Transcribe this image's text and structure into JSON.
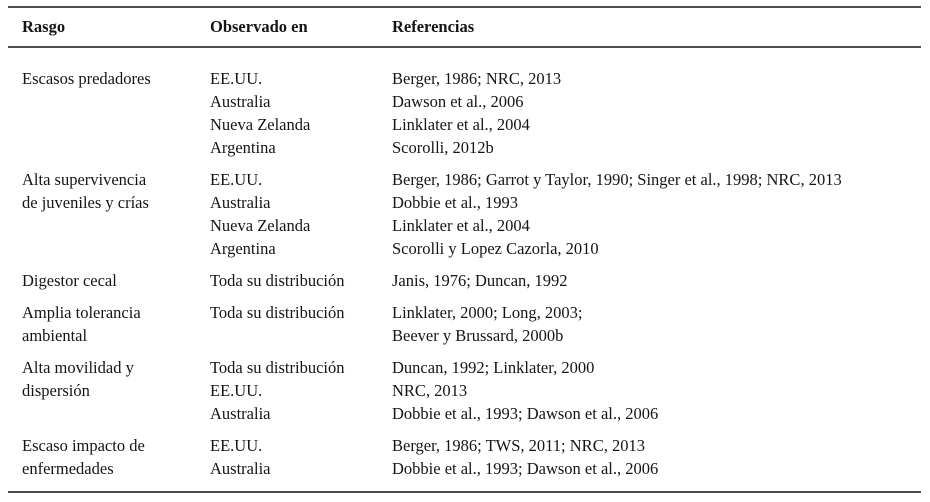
{
  "colors": {
    "rule": "#4e4e4e",
    "text": "#151515",
    "background": "#ffffff"
  },
  "table": {
    "columns": [
      "Rasgo",
      "Observado en",
      "Referencias"
    ],
    "rows": [
      {
        "rasgo_lines": [
          "Escasos predadores"
        ],
        "cells": [
          {
            "observado": "EE.UU.",
            "referencias": "Berger, 1986; NRC, 2013"
          },
          {
            "observado": "Australia",
            "referencias": "Dawson et al., 2006"
          },
          {
            "observado": "Nueva Zelanda",
            "referencias": "Linklater et al., 2004"
          },
          {
            "observado": "Argentina",
            "referencias": "Scorolli, 2012b"
          }
        ]
      },
      {
        "rasgo_lines": [
          "Alta supervivencia",
          "de juveniles y crías"
        ],
        "cells": [
          {
            "observado": "EE.UU.",
            "referencias": "Berger, 1986; Garrot y Taylor, 1990; Singer et al., 1998; NRC, 2013"
          },
          {
            "observado": "Australia",
            "referencias": "Dobbie et al., 1993"
          },
          {
            "observado": "Nueva Zelanda",
            "referencias": "Linklater et al., 2004"
          },
          {
            "observado": "Argentina",
            "referencias": "Scorolli y Lopez Cazorla, 2010"
          }
        ]
      },
      {
        "rasgo_lines": [
          "Digestor cecal"
        ],
        "cells": [
          {
            "observado": "Toda su distribución",
            "referencias": "Janis, 1976; Duncan, 1992"
          }
        ]
      },
      {
        "rasgo_lines": [
          "Amplia tolerancia",
          "ambiental"
        ],
        "cells": [
          {
            "observado": "Toda su distribución",
            "referencias": "Linklater, 2000; Long, 2003;"
          },
          {
            "observado": "",
            "referencias": "Beever y Brussard, 2000b"
          }
        ]
      },
      {
        "rasgo_lines": [
          "Alta movilidad y",
          "dispersión"
        ],
        "cells": [
          {
            "observado": "Toda su distribución",
            "referencias": "Duncan, 1992; Linklater, 2000"
          },
          {
            "observado": "EE.UU.",
            "referencias": "NRC, 2013"
          },
          {
            "observado": "Australia",
            "referencias": "Dobbie et al., 1993; Dawson et al., 2006"
          }
        ]
      },
      {
        "rasgo_lines": [
          "Escaso impacto de",
          "enfermedades"
        ],
        "cells": [
          {
            "observado": "EE.UU.",
            "referencias": "Berger, 1986; TWS, 2011; NRC, 2013"
          },
          {
            "observado": "Australia",
            "referencias": "Dobbie et al., 1993; Dawson et al., 2006"
          }
        ]
      }
    ]
  }
}
